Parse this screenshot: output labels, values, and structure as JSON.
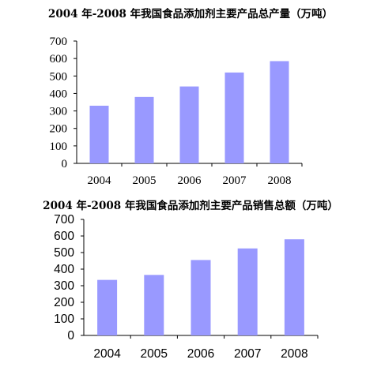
{
  "chart_data": [
    {
      "type": "bar",
      "title": "2004 年-2008 年我国食品添加剂主要产品总产量（万吨）",
      "categories": [
        "2004",
        "2005",
        "2006",
        "2007",
        "2008"
      ],
      "values": [
        330,
        380,
        440,
        520,
        585
      ],
      "yticks": [
        "0",
        "100",
        "200",
        "300",
        "400",
        "500",
        "600",
        "700"
      ],
      "ylim": [
        0,
        700
      ],
      "bar_color": "#9999ff",
      "grid": false,
      "legend": "none"
    },
    {
      "type": "bar",
      "title": "2004 年-2008 年我国食品添加剂主要产品销售总额（万吨）",
      "categories": [
        "2004",
        "2005",
        "2006",
        "2007",
        "2008"
      ],
      "values": [
        335,
        365,
        455,
        525,
        580
      ],
      "yticks": [
        "0",
        "100",
        "200",
        "300",
        "400",
        "500",
        "600",
        "700"
      ],
      "ylim": [
        0,
        700
      ],
      "bar_color": "#9999ff",
      "grid": false,
      "legend": "none"
    }
  ]
}
